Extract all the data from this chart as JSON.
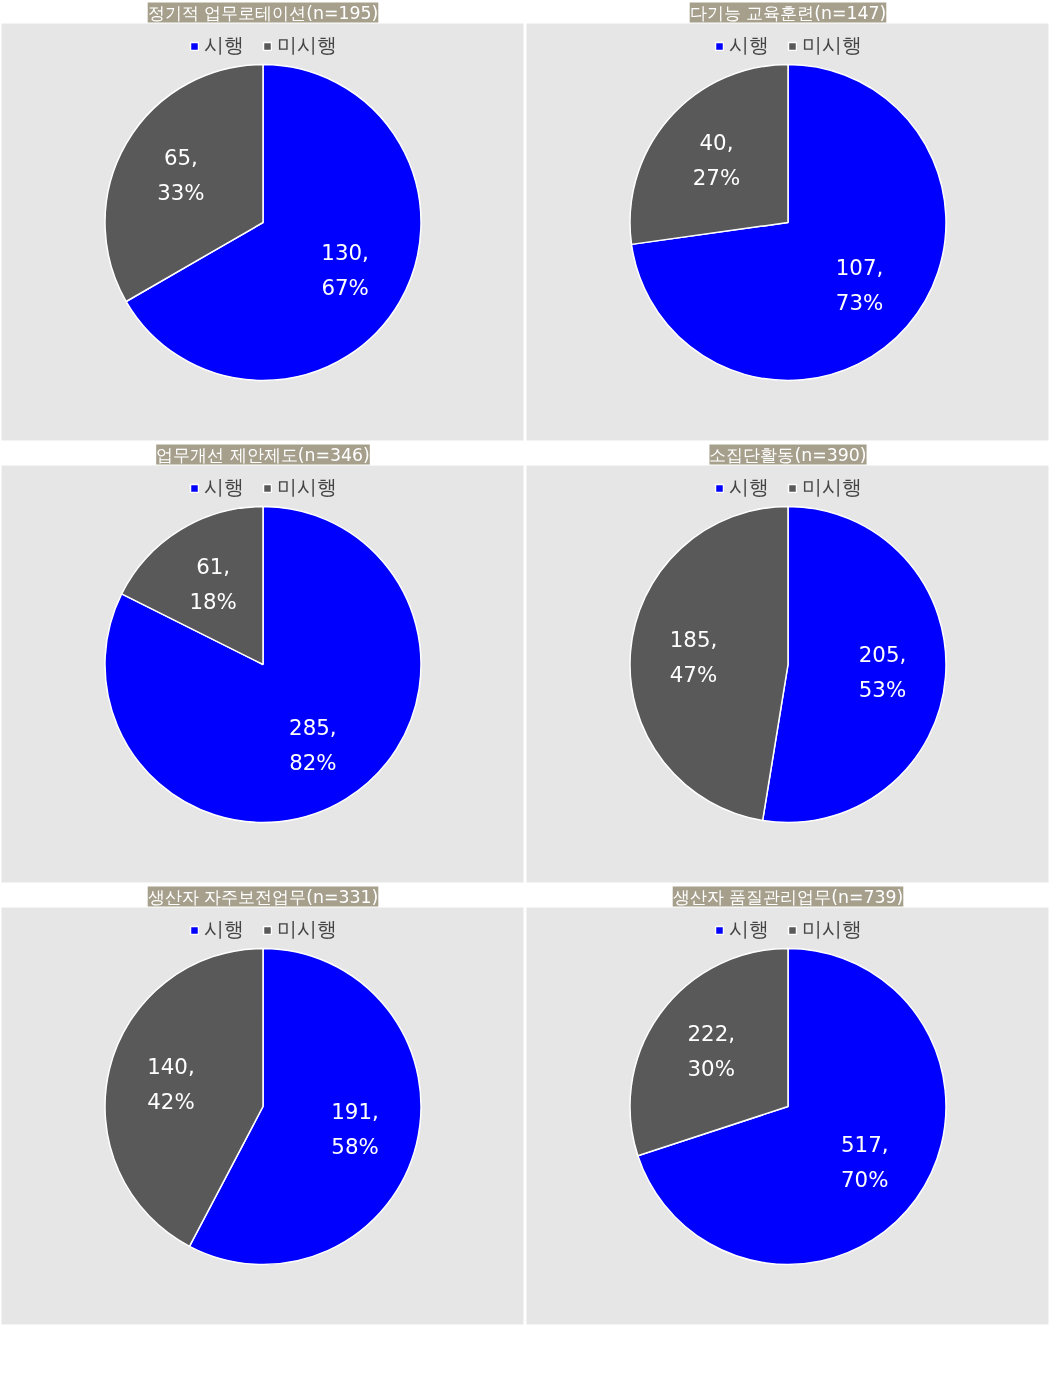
{
  "chart_data": [
    {
      "type": "pie",
      "title": "정기적 업무로테이션(n=195)",
      "categories": [
        "시행",
        "미시행"
      ],
      "values": [
        130,
        65
      ],
      "colors": [
        "#0000ff",
        "#595959"
      ],
      "value_labels": [
        "130,\n67%",
        "65,\n33%"
      ],
      "legend": "top"
    },
    {
      "type": "pie",
      "title": "다기능 교육훈련(n=147)",
      "categories": [
        "시행",
        "미시행"
      ],
      "values": [
        107,
        40
      ],
      "colors": [
        "#0000ff",
        "#595959"
      ],
      "value_labels": [
        "107,\n73%",
        "40,\n27%"
      ],
      "legend": "top"
    },
    {
      "type": "pie",
      "title": "업무개선 제안제도(n=346)",
      "categories": [
        "시행",
        "미시행"
      ],
      "values": [
        285,
        61
      ],
      "colors": [
        "#0000ff",
        "#595959"
      ],
      "value_labels": [
        "285,\n82%",
        "61,\n18%"
      ],
      "legend": "top"
    },
    {
      "type": "pie",
      "title": "소집단활동(n=390)",
      "categories": [
        "시행",
        "미시행"
      ],
      "values": [
        205,
        185
      ],
      "colors": [
        "#0000ff",
        "#595959"
      ],
      "value_labels": [
        "205,\n53%",
        "185,\n47%"
      ],
      "legend": "top"
    },
    {
      "type": "pie",
      "title": "생산자 자주보전업무(n=331)",
      "categories": [
        "시행",
        "미시행"
      ],
      "values": [
        191,
        140
      ],
      "colors": [
        "#0000ff",
        "#595959"
      ],
      "value_labels": [
        "191,\n58%",
        "140,\n42%"
      ],
      "legend": "top"
    },
    {
      "type": "pie",
      "title": "생산자 품질관리업무(n=739)",
      "categories": [
        "시행",
        "미시행"
      ],
      "values": [
        517,
        222
      ],
      "colors": [
        "#0000ff",
        "#595959"
      ],
      "value_labels": [
        "517,\n70%",
        "222,\n30%"
      ],
      "legend": "top"
    }
  ]
}
